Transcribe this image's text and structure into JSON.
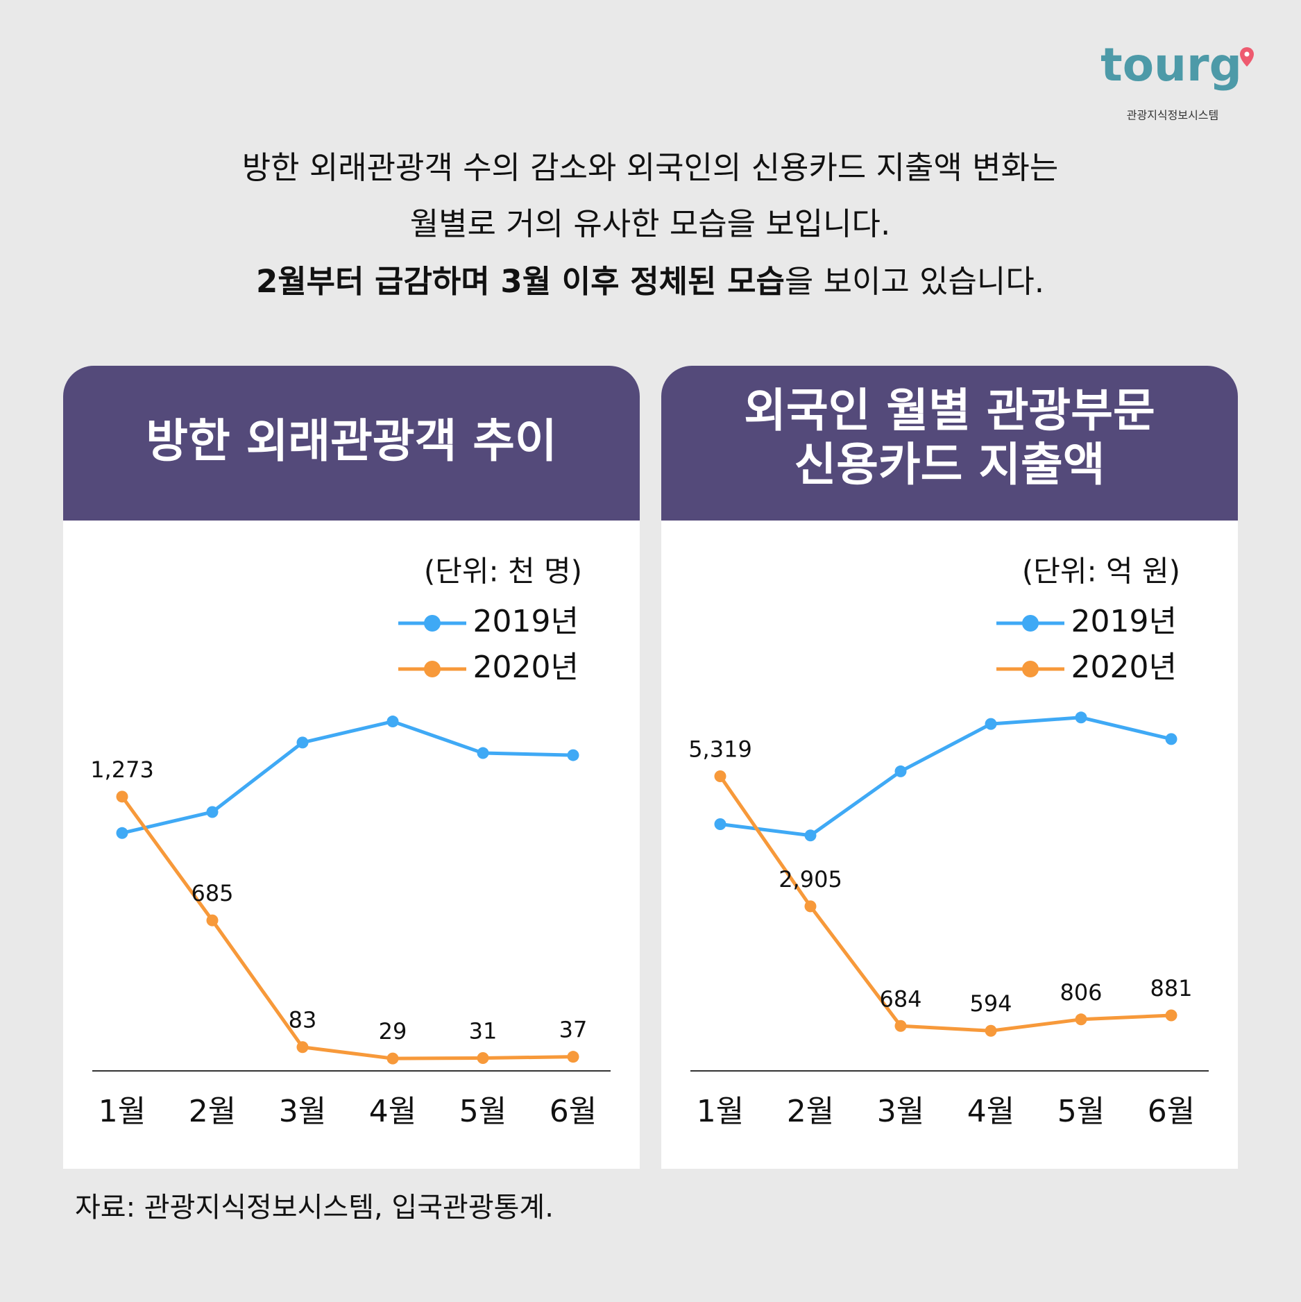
{
  "logo": {
    "name": "tourg",
    "caption": "관광지식정보시스템"
  },
  "header": {
    "lines": [
      "방한 외래관광객 수의 감소와 외국인의 신용카드 지출액 변화는",
      "월별로 거의 유사한 모습을 보입니다."
    ],
    "emphasis": "2월부터 급감하며 3월 이후 정체된 모습",
    "emphasis_rest": "을 보이고 있습니다."
  },
  "chart_data": [
    {
      "type": "line",
      "title": [
        "방한 외래관광객 추이"
      ],
      "unit": "(단위: 천 명)",
      "categories": [
        "1월",
        "2월",
        "3월",
        "4월",
        "5월",
        "6월"
      ],
      "series": [
        {
          "name": "2019년",
          "color": "#3fa9f5",
          "values": [
            1100,
            1200,
            1530,
            1630,
            1480,
            1470
          ]
        },
        {
          "name": "2020년",
          "color": "#f7993a",
          "values": [
            1273,
            685,
            83,
            29,
            31,
            37
          ],
          "value_labels": [
            "1,273",
            "685",
            "83",
            "29",
            "31",
            "37"
          ]
        }
      ],
      "ylim": [
        -30,
        1800
      ],
      "legend": "upper-right"
    },
    {
      "type": "line",
      "title": [
        "외국인 월별 관광부문",
        "신용카드 지출액"
      ],
      "unit": "(단위: 억 원)",
      "categories": [
        "1월",
        "2월",
        "3월",
        "4월",
        "5월",
        "6월"
      ],
      "series": [
        {
          "name": "2019년",
          "color": "#3fa9f5",
          "values": [
            4430,
            4220,
            5410,
            6290,
            6410,
            6010
          ]
        },
        {
          "name": "2020년",
          "color": "#f7993a",
          "values": [
            5319,
            2905,
            684,
            594,
            806,
            881
          ],
          "value_labels": [
            "5,319",
            "2,905",
            "684",
            "594",
            "806",
            "881"
          ]
        }
      ],
      "ylim": [
        -150,
        7000
      ],
      "legend": "upper-right"
    }
  ],
  "source": "자료: 관광지식정보시스템, 입국관광통계."
}
